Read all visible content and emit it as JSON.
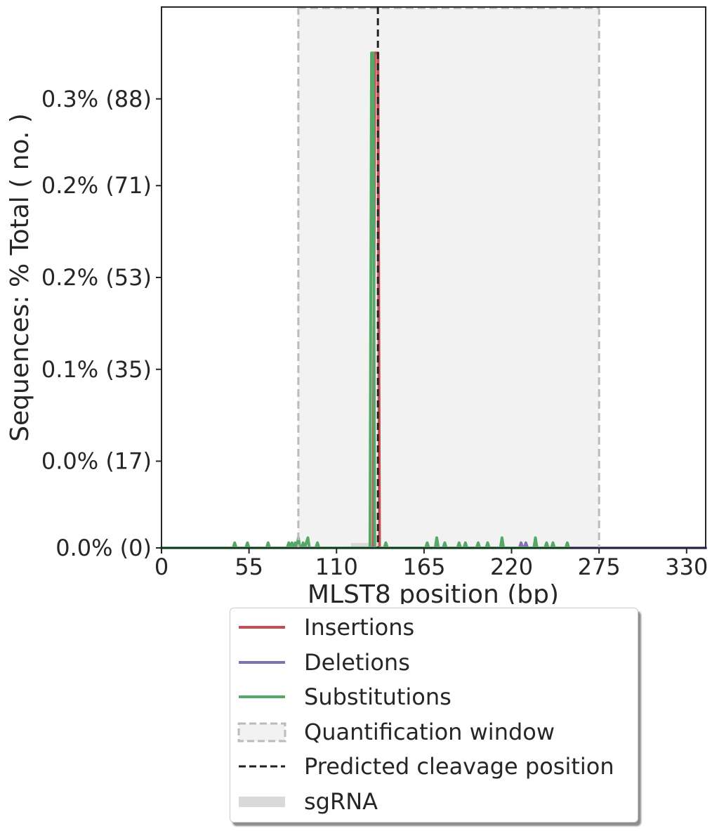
{
  "chart_data": {
    "type": "line",
    "xlabel": "MLST8 position (bp)",
    "ylabel": "Sequences: % Total ( no. )",
    "xlim": [
      0,
      342
    ],
    "ylim": [
      0,
      106
    ],
    "x_ticks": [
      0,
      55,
      110,
      165,
      220,
      275,
      330
    ],
    "y_ticks": [
      {
        "value": 0,
        "label": "0.0% (0)"
      },
      {
        "value": 17,
        "label": "0.0% (17)"
      },
      {
        "value": 35,
        "label": "0.1% (35)"
      },
      {
        "value": 53,
        "label": "0.2% (53)"
      },
      {
        "value": 71,
        "label": "0.2% (71)"
      },
      {
        "value": 88,
        "label": "0.3% (88)"
      }
    ],
    "quantification_window": [
      86,
      275
    ],
    "predicted_cleavage_position": 136,
    "sgrna": [
      119,
      136
    ],
    "grid": false,
    "legend_placement": "below",
    "series": [
      {
        "name": "Insertions",
        "color": "#c44e52",
        "points": [
          [
            0,
            0
          ],
          [
            132,
            0
          ],
          [
            133,
            0
          ],
          [
            134,
            97
          ],
          [
            135,
            97
          ],
          [
            136,
            97
          ],
          [
            137,
            0
          ],
          [
            138,
            0
          ],
          [
            342,
            0
          ]
        ]
      },
      {
        "name": "Deletions",
        "color": "#8172b2",
        "points": [
          [
            0,
            0
          ],
          [
            225,
            0
          ],
          [
            226,
            1
          ],
          [
            227,
            0
          ],
          [
            228,
            0
          ],
          [
            229,
            1
          ],
          [
            230,
            0
          ],
          [
            342,
            0
          ]
        ]
      },
      {
        "name": "Substitutions",
        "color": "#55a868",
        "points": [
          [
            0,
            0
          ],
          [
            45,
            0
          ],
          [
            46,
            1
          ],
          [
            47,
            0
          ],
          [
            53,
            0
          ],
          [
            54,
            1
          ],
          [
            55,
            0
          ],
          [
            66,
            0
          ],
          [
            67,
            1
          ],
          [
            68,
            0
          ],
          [
            79,
            0
          ],
          [
            80,
            1
          ],
          [
            81,
            0
          ],
          [
            82,
            1
          ],
          [
            83,
            0
          ],
          [
            84,
            1
          ],
          [
            85,
            0
          ],
          [
            86,
            2
          ],
          [
            87,
            0
          ],
          [
            88,
            0
          ],
          [
            89,
            1
          ],
          [
            90,
            0
          ],
          [
            92,
            2
          ],
          [
            93,
            0
          ],
          [
            97,
            0
          ],
          [
            98,
            1
          ],
          [
            99,
            0
          ],
          [
            131,
            0
          ],
          [
            132,
            97
          ],
          [
            133,
            97
          ],
          [
            134,
            0
          ],
          [
            140,
            0
          ],
          [
            141,
            1
          ],
          [
            142,
            0
          ],
          [
            166,
            0
          ],
          [
            167,
            1
          ],
          [
            168,
            0
          ],
          [
            172,
            0
          ],
          [
            173,
            2
          ],
          [
            174,
            0
          ],
          [
            177,
            0
          ],
          [
            178,
            1
          ],
          [
            179,
            0
          ],
          [
            186,
            0
          ],
          [
            187,
            1
          ],
          [
            188,
            0
          ],
          [
            190,
            0
          ],
          [
            191,
            1
          ],
          [
            192,
            0
          ],
          [
            198,
            0
          ],
          [
            199,
            1
          ],
          [
            200,
            0
          ],
          [
            204,
            0
          ],
          [
            205,
            1
          ],
          [
            206,
            0
          ],
          [
            213,
            0
          ],
          [
            214,
            2
          ],
          [
            215,
            0
          ],
          [
            234,
            0
          ],
          [
            235,
            2
          ],
          [
            236,
            0
          ],
          [
            241,
            0
          ],
          [
            242,
            1
          ],
          [
            243,
            0
          ],
          [
            245,
            0
          ],
          [
            246,
            1
          ],
          [
            247,
            0
          ],
          [
            254,
            0
          ],
          [
            255,
            1
          ],
          [
            256,
            0
          ]
        ]
      }
    ]
  },
  "legend": {
    "items": [
      {
        "key": "insertions",
        "label": "Insertions",
        "kind": "line",
        "color": "#c44e52"
      },
      {
        "key": "deletions",
        "label": "Deletions",
        "kind": "line",
        "color": "#8172b2"
      },
      {
        "key": "substitutions",
        "label": "Substitutions",
        "kind": "line",
        "color": "#55a868"
      },
      {
        "key": "quantification-window",
        "label": "Quantification window",
        "kind": "dashed-box",
        "color": "#bbbbbb"
      },
      {
        "key": "predicted-cleavage",
        "label": "Predicted cleavage position",
        "kind": "dashed-line",
        "color": "#222222"
      },
      {
        "key": "sgrna",
        "label": "sgRNA",
        "kind": "bar",
        "color": "#d9d9d9"
      }
    ]
  }
}
